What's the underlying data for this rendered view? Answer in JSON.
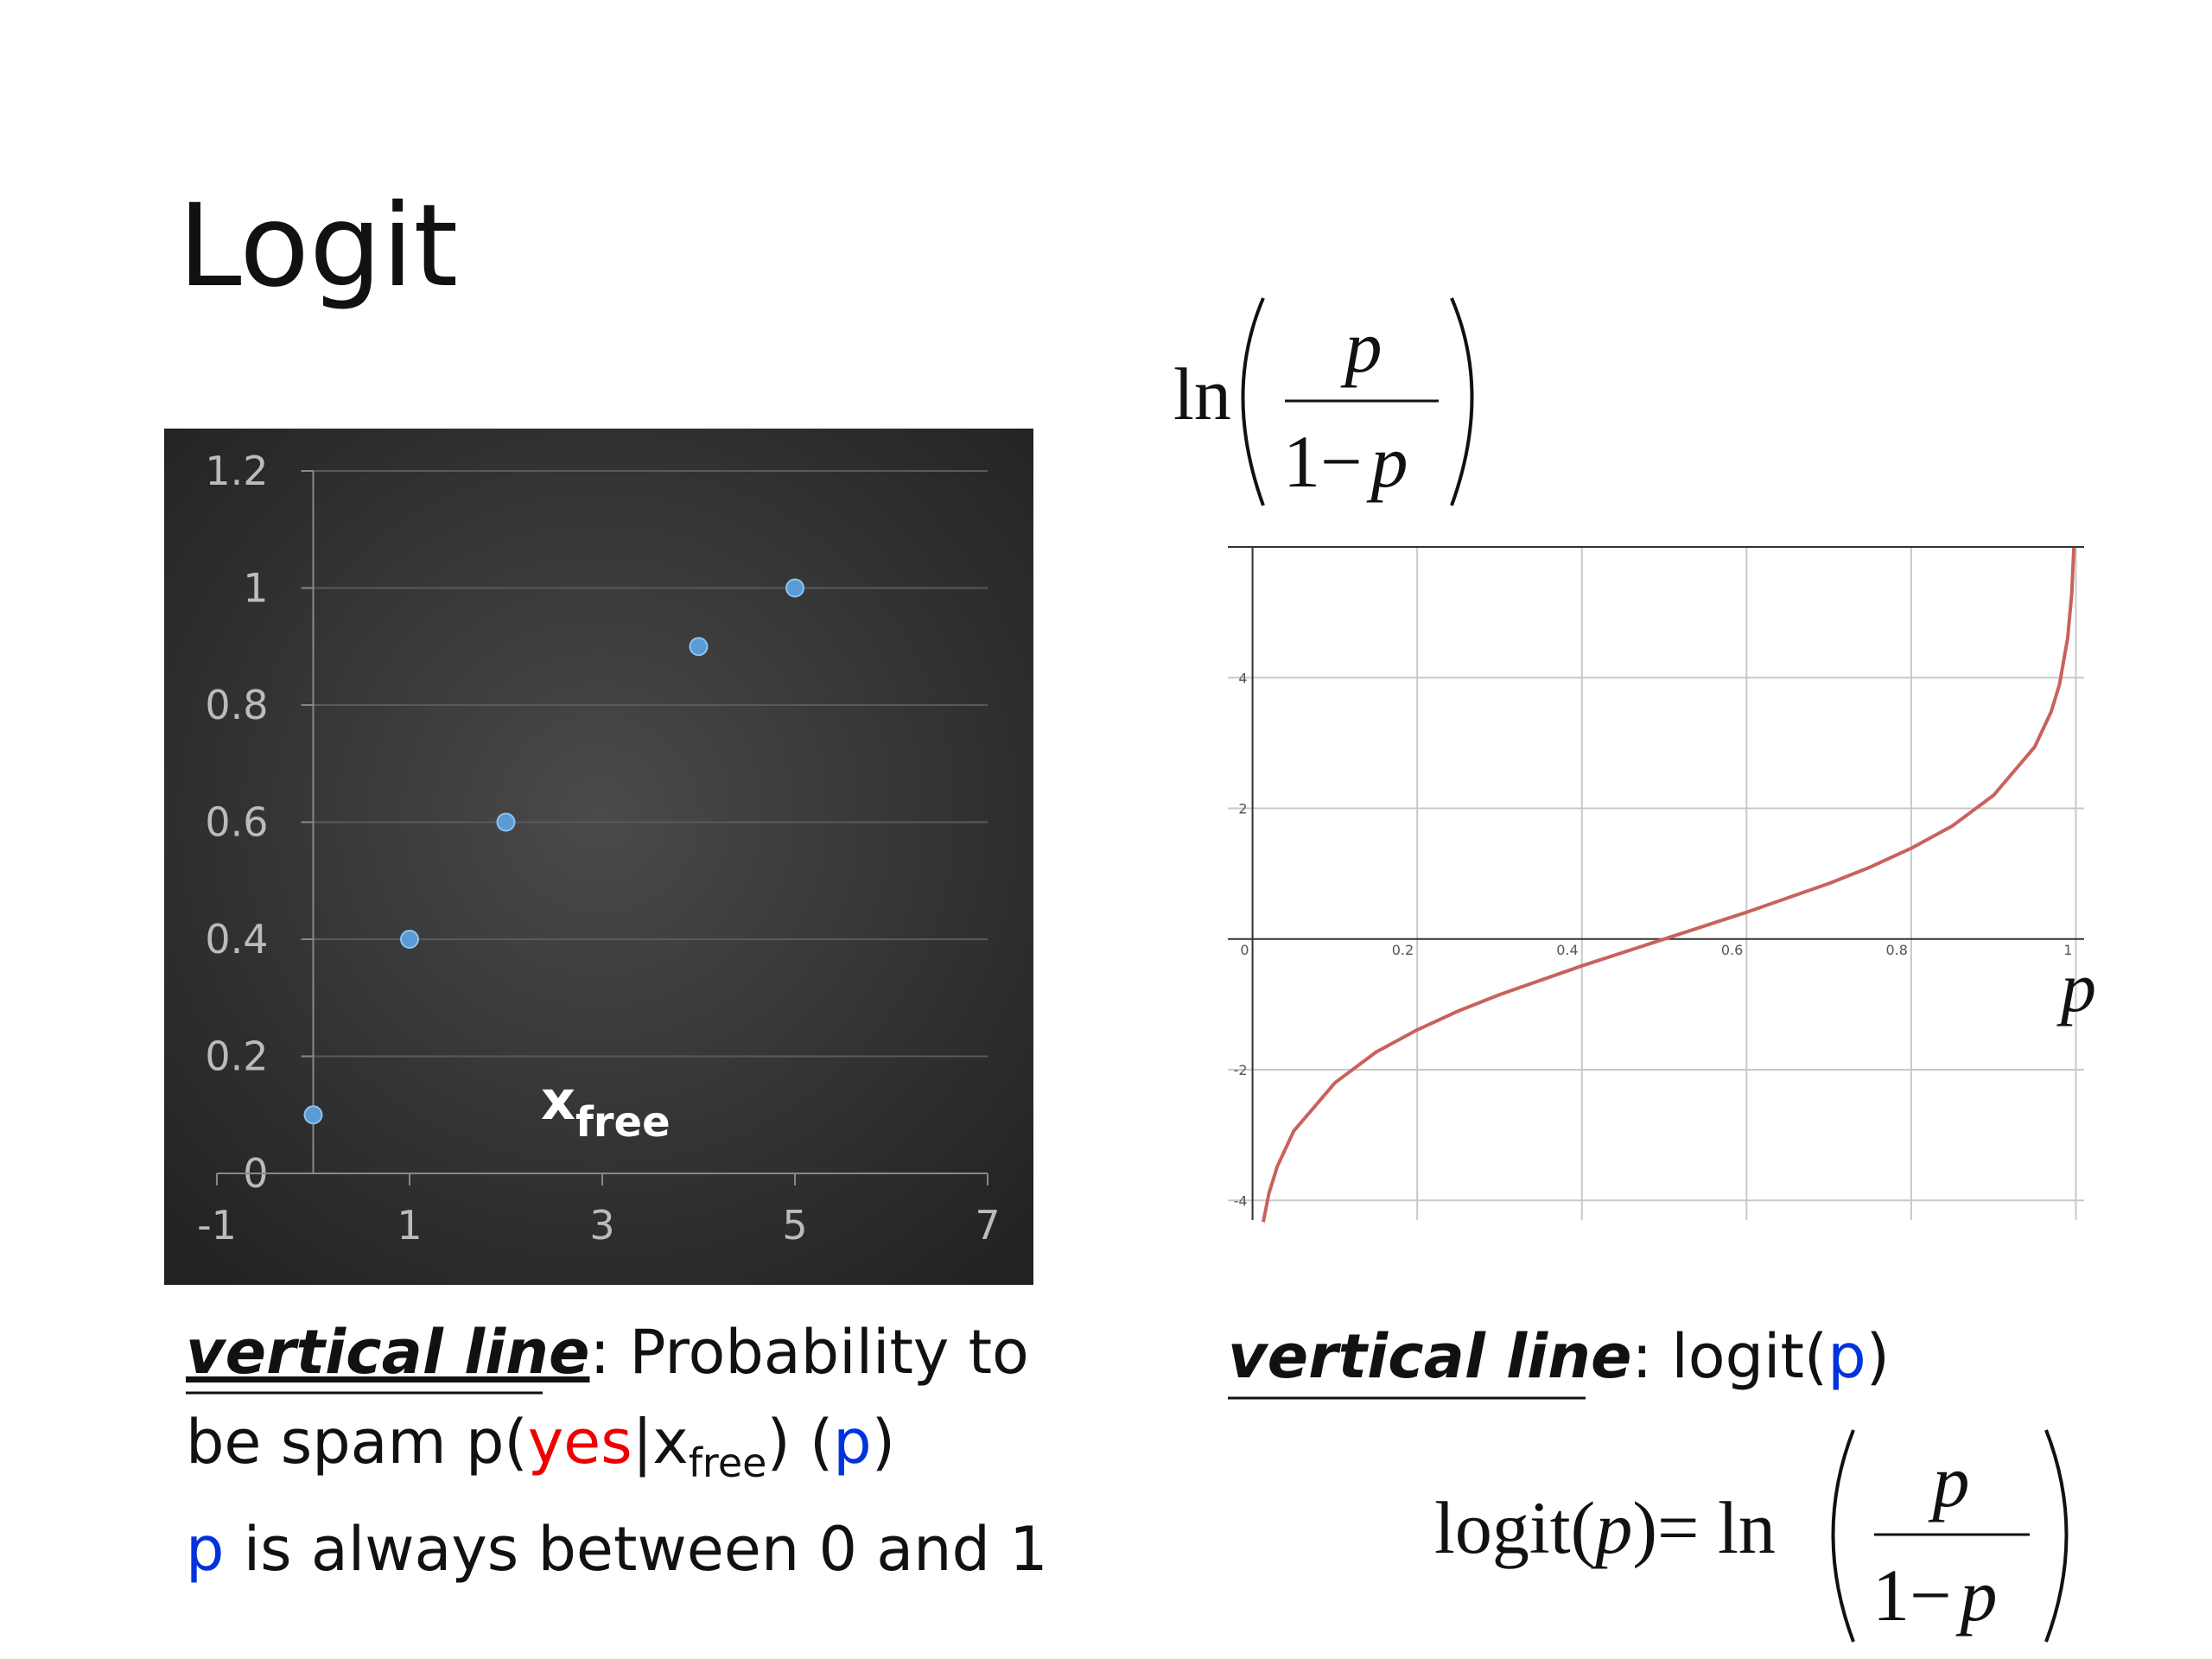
{
  "slide": {
    "title": "Logit",
    "top_formula": {
      "ln": "ln",
      "numerator": "p",
      "denominator_a": "1−",
      "denominator_b": "p"
    },
    "left_caption": {
      "emph": "vertical line",
      "text1": ": Probability to",
      "text2": "be spam p(",
      "yes": "yes",
      "bar_x": "|x",
      "sub": "free",
      "text3": ") (",
      "p": "p",
      "text4": ")",
      "line3_p": "p",
      "line3": " is always between 0 and 1"
    },
    "right_caption": {
      "emph": "vertical line",
      "text1": ": logit(",
      "p": "p",
      "text2": ")"
    },
    "bottom_formula": {
      "logit": "logit(",
      "p": "p",
      "close": ")",
      "eq_ln": "= ln",
      "numerator": "p",
      "denominator_a": "1−",
      "denominator_b": "p"
    }
  },
  "chart_data": [
    {
      "type": "scatter",
      "x": [
        0,
        1,
        2,
        4,
        5
      ],
      "values": [
        0.1,
        0.4,
        0.6,
        0.9,
        1
      ],
      "color": "#5b9bd5",
      "xlim": [
        -1,
        7
      ],
      "xticks": [
        -1,
        1,
        3,
        5,
        7
      ],
      "ylim": [
        0,
        1.2
      ],
      "yticks": [
        0,
        0.2,
        0.4,
        0.6,
        0.8,
        1,
        1.2
      ],
      "grid": true,
      "annotation": {
        "text": "x",
        "sub": "free"
      }
    },
    {
      "type": "line",
      "color": "#c9625c",
      "x_label": "p",
      "x": [
        0.013,
        0.02,
        0.03,
        0.05,
        0.1,
        0.15,
        0.2,
        0.25,
        0.3,
        0.4,
        0.5,
        0.6,
        0.7,
        0.75,
        0.8,
        0.85,
        0.9,
        0.95,
        0.97,
        0.98,
        0.99,
        0.995,
        0.9975
      ],
      "values": [
        -4.33,
        -3.89,
        -3.48,
        -2.94,
        -2.2,
        -1.73,
        -1.39,
        -1.1,
        -0.85,
        -0.41,
        0,
        0.41,
        0.85,
        1.1,
        1.39,
        1.73,
        2.2,
        2.94,
        3.48,
        3.89,
        4.6,
        5.29,
        5.99
      ],
      "xlim": [
        -0.03,
        1.01
      ],
      "xticks": [
        0,
        0.2,
        0.4,
        0.6,
        0.8,
        1
      ],
      "ylim": [
        -4.3,
        6
      ],
      "yticks": [
        -4,
        -2,
        2,
        4
      ],
      "grid": true
    }
  ]
}
